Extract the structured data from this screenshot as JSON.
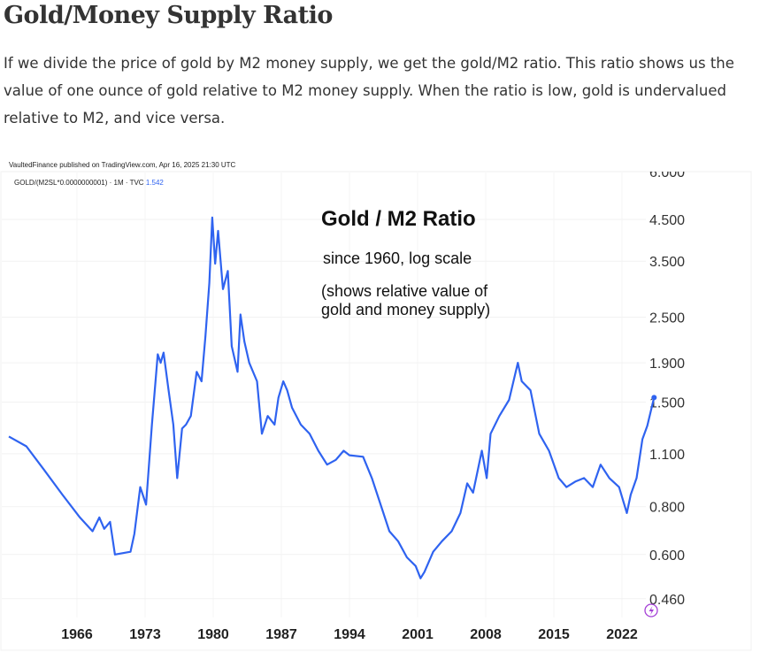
{
  "article": {
    "title": "Gold/Money Supply Ratio",
    "intro": "If we divide the price of gold by M2 money supply, we get the gold/M2 ratio. This ratio shows us the value of one ounce of gold relative to M2 money supply. When the ratio is low, gold is undervalued relative to M2, and vice versa."
  },
  "chart_data": {
    "type": "line",
    "publisher_line": "VaultedFinance published on TradingView.com, Apr 16, 2025 21:30 UTC",
    "symbol_line": "GOLD/(M2SL*0.0000000001) · 1M · TVC",
    "last_value": "1.542",
    "title": "Gold / M2 Ratio",
    "subtitle": "since 1960, log scale",
    "annotation_lines": [
      "(shows relative value of",
      "gold and money supply)"
    ],
    "y_scale": "log",
    "y_ticks": [
      "6.000",
      "4.500",
      "3.500",
      "2.500",
      "1.900",
      "1.500",
      "1.100",
      "0.800",
      "0.600",
      "0.460"
    ],
    "x_ticks": [
      "1966",
      "1973",
      "1980",
      "1987",
      "1994",
      "2001",
      "2008",
      "2015",
      "2022"
    ],
    "ylim": [
      0.43,
      6.0
    ],
    "xlim": [
      1959,
      2027
    ],
    "grid": true,
    "line_color": "#2f63f0",
    "series": [
      {
        "x": [
          1959.0,
          1960.8,
          1962.6,
          1964.5,
          1966.3,
          1967.6,
          1968.3,
          1968.8,
          1969.4,
          1969.9,
          1971.5,
          1971.9,
          1972.5,
          1973.1,
          1973.7,
          1974.3,
          1974.6,
          1974.9,
          1975.4,
          1975.9,
          1976.3,
          1976.8,
          1977.2,
          1977.7,
          1978.3,
          1978.8,
          1979.2,
          1979.6,
          1979.9,
          1980.2,
          1980.5,
          1981.0,
          1981.5,
          1981.9,
          1982.5,
          1982.8,
          1983.2,
          1983.7,
          1984.5,
          1985.0,
          1985.6,
          1986.3,
          1986.7,
          1987.2,
          1987.6,
          1988.1,
          1989.0,
          1989.9,
          1990.8,
          1991.7,
          1992.6,
          1993.4,
          1994.0,
          1995.4,
          1996.3,
          1997.2,
          1998.1,
          1999.0,
          1999.9,
          2000.8,
          2001.3,
          2001.7,
          2002.6,
          2003.5,
          2004.5,
          2005.4,
          2006.1,
          2006.7,
          2007.6,
          2008.1,
          2008.5,
          2009.4,
          2010.4,
          2011.3,
          2011.7,
          2012.6,
          2013.5,
          2014.5,
          2015.5,
          2016.3,
          2017.2,
          2018.1,
          2019.0,
          2019.8,
          2020.7,
          2021.7,
          2022.5,
          2022.9,
          2023.5,
          2024.1,
          2024.6,
          2025.3
        ],
        "y": [
          1.22,
          1.15,
          1.0,
          0.86,
          0.75,
          0.69,
          0.75,
          0.7,
          0.73,
          0.6,
          0.61,
          0.68,
          0.9,
          0.81,
          1.31,
          2.0,
          1.9,
          2.02,
          1.62,
          1.31,
          0.95,
          1.28,
          1.31,
          1.38,
          1.8,
          1.7,
          2.23,
          3.07,
          4.55,
          3.45,
          4.2,
          2.96,
          3.3,
          2.1,
          1.8,
          2.54,
          2.16,
          1.9,
          1.7,
          1.24,
          1.38,
          1.31,
          1.54,
          1.7,
          1.61,
          1.45,
          1.31,
          1.24,
          1.12,
          1.03,
          1.06,
          1.12,
          1.09,
          1.08,
          0.95,
          0.81,
          0.69,
          0.65,
          0.59,
          0.56,
          0.52,
          0.54,
          0.61,
          0.65,
          0.69,
          0.77,
          0.92,
          0.87,
          1.12,
          0.95,
          1.24,
          1.38,
          1.52,
          1.9,
          1.7,
          1.61,
          1.24,
          1.12,
          0.95,
          0.9,
          0.93,
          0.95,
          0.9,
          1.03,
          0.95,
          0.9,
          0.77,
          0.86,
          0.95,
          1.2,
          1.3,
          1.542
        ]
      }
    ]
  }
}
